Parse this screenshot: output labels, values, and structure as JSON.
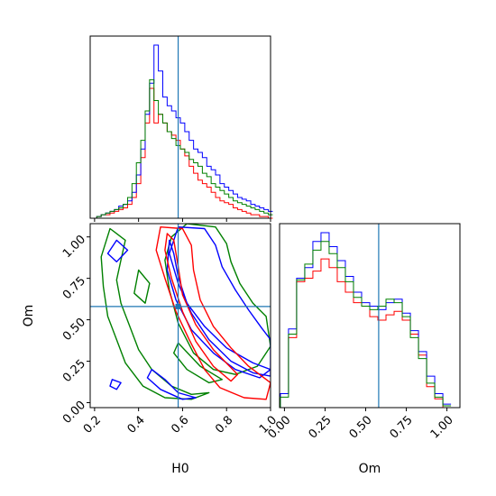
{
  "chart_data": {
    "type": "corner",
    "parameters": [
      "H0",
      "Om"
    ],
    "truth": {
      "H0": 0.58,
      "Om": 0.58
    },
    "truth_color": "#1f77b4",
    "series_colors": [
      "#ff0000",
      "#0000ff",
      "#008000"
    ],
    "axes": {
      "H0": {
        "xlabel": "H0",
        "xlim": [
          0.18,
          1.0
        ],
        "ticks": [
          0.2,
          0.4,
          0.6,
          0.8,
          1.0
        ],
        "tick_labels": [
          "0.2",
          "0.4",
          "0.6",
          "0.8",
          "1.0"
        ]
      },
      "Om": {
        "xlabel": "Om",
        "ylabel": "Om",
        "lim": [
          -0.03,
          1.08
        ],
        "ticks": [
          0.0,
          0.25,
          0.5,
          0.75,
          1.0
        ],
        "tick_labels": [
          "0.00",
          "0.25",
          "0.50",
          "0.75",
          "1.00"
        ]
      }
    },
    "h0_histograms": {
      "x": [
        0.2,
        0.22,
        0.24,
        0.26,
        0.28,
        0.3,
        0.32,
        0.34,
        0.36,
        0.38,
        0.4,
        0.42,
        0.44,
        0.46,
        0.48,
        0.5,
        0.52,
        0.54,
        0.56,
        0.58,
        0.6,
        0.62,
        0.64,
        0.66,
        0.68,
        0.7,
        0.72,
        0.74,
        0.76,
        0.78,
        0.8,
        0.82,
        0.84,
        0.86,
        0.88,
        0.9,
        0.92,
        0.94,
        0.96,
        0.98,
        1.0
      ],
      "red": [
        0,
        0.01,
        0.02,
        0.02,
        0.03,
        0.04,
        0.05,
        0.06,
        0.08,
        0.12,
        0.2,
        0.35,
        0.55,
        0.75,
        0.55,
        0.6,
        0.55,
        0.5,
        0.48,
        0.45,
        0.4,
        0.36,
        0.3,
        0.26,
        0.22,
        0.2,
        0.18,
        0.15,
        0.12,
        0.1,
        0.09,
        0.08,
        0.06,
        0.05,
        0.04,
        0.03,
        0.02,
        0.02,
        0.01,
        0.01,
        0.0
      ],
      "blue": [
        0,
        0.01,
        0.02,
        0.03,
        0.04,
        0.05,
        0.07,
        0.08,
        0.1,
        0.15,
        0.25,
        0.4,
        0.6,
        0.78,
        1.0,
        0.85,
        0.7,
        0.65,
        0.62,
        0.58,
        0.55,
        0.5,
        0.45,
        0.4,
        0.38,
        0.35,
        0.3,
        0.28,
        0.25,
        0.2,
        0.18,
        0.16,
        0.14,
        0.12,
        0.11,
        0.1,
        0.08,
        0.07,
        0.06,
        0.05,
        0.04
      ],
      "green": [
        0,
        0.01,
        0.02,
        0.03,
        0.04,
        0.05,
        0.06,
        0.08,
        0.12,
        0.2,
        0.32,
        0.45,
        0.62,
        0.8,
        0.68,
        0.6,
        0.55,
        0.5,
        0.46,
        0.42,
        0.4,
        0.38,
        0.34,
        0.32,
        0.3,
        0.26,
        0.24,
        0.2,
        0.18,
        0.16,
        0.14,
        0.12,
        0.1,
        0.09,
        0.08,
        0.07,
        0.06,
        0.05,
        0.04,
        0.03,
        0.02
      ]
    },
    "om_histograms": {
      "x": [
        0.0,
        0.05,
        0.1,
        0.15,
        0.2,
        0.25,
        0.3,
        0.35,
        0.4,
        0.45,
        0.5,
        0.55,
        0.6,
        0.65,
        0.7,
        0.75,
        0.8,
        0.85,
        0.9,
        0.95,
        1.0
      ],
      "red": [
        0.08,
        0.4,
        0.72,
        0.74,
        0.78,
        0.85,
        0.8,
        0.72,
        0.66,
        0.6,
        0.58,
        0.52,
        0.5,
        0.53,
        0.55,
        0.5,
        0.42,
        0.3,
        0.12,
        0.05,
        0.0
      ],
      "blue": [
        0.08,
        0.45,
        0.74,
        0.8,
        0.95,
        1.0,
        0.92,
        0.84,
        0.75,
        0.66,
        0.6,
        0.58,
        0.56,
        0.6,
        0.62,
        0.54,
        0.44,
        0.32,
        0.18,
        0.08,
        0.02
      ],
      "green": [
        0.06,
        0.42,
        0.73,
        0.82,
        0.9,
        0.95,
        0.88,
        0.8,
        0.72,
        0.63,
        0.58,
        0.56,
        0.58,
        0.62,
        0.6,
        0.52,
        0.4,
        0.28,
        0.14,
        0.06,
        0.01
      ]
    },
    "contours": {
      "red": [
        [
          [
            0.5,
            1.06
          ],
          [
            0.6,
            1.05
          ],
          [
            0.64,
            0.95
          ],
          [
            0.65,
            0.8
          ],
          [
            0.68,
            0.62
          ],
          [
            0.74,
            0.46
          ],
          [
            0.82,
            0.33
          ],
          [
            0.9,
            0.22
          ],
          [
            1.0,
            0.12
          ],
          [
            0.98,
            0.02
          ],
          [
            0.88,
            0.03
          ],
          [
            0.77,
            0.09
          ],
          [
            0.7,
            0.2
          ],
          [
            0.63,
            0.38
          ],
          [
            0.57,
            0.55
          ],
          [
            0.52,
            0.75
          ],
          [
            0.48,
            0.92
          ],
          [
            0.5,
            1.06
          ]
        ],
        [
          [
            0.53,
            1.02
          ],
          [
            0.56,
            0.98
          ],
          [
            0.58,
            0.82
          ],
          [
            0.6,
            0.65
          ],
          [
            0.66,
            0.47
          ],
          [
            0.74,
            0.32
          ],
          [
            0.85,
            0.17
          ],
          [
            0.82,
            0.13
          ],
          [
            0.74,
            0.22
          ],
          [
            0.66,
            0.37
          ],
          [
            0.6,
            0.55
          ],
          [
            0.55,
            0.75
          ],
          [
            0.52,
            0.92
          ],
          [
            0.53,
            1.02
          ]
        ]
      ],
      "blue": [
        [
          [
            0.58,
            1.06
          ],
          [
            0.7,
            1.05
          ],
          [
            0.75,
            0.95
          ],
          [
            0.78,
            0.82
          ],
          [
            0.84,
            0.68
          ],
          [
            0.9,
            0.56
          ],
          [
            0.96,
            0.45
          ],
          [
            1.0,
            0.38
          ],
          [
            1.0,
            0.16
          ],
          [
            0.92,
            0.18
          ],
          [
            0.82,
            0.25
          ],
          [
            0.72,
            0.38
          ],
          [
            0.64,
            0.54
          ],
          [
            0.58,
            0.72
          ],
          [
            0.54,
            0.9
          ],
          [
            0.58,
            1.06
          ]
        ],
        [
          [
            0.54,
            0.98
          ],
          [
            0.56,
            0.9
          ],
          [
            0.58,
            0.76
          ],
          [
            0.62,
            0.6
          ],
          [
            0.7,
            0.46
          ],
          [
            0.8,
            0.33
          ],
          [
            0.92,
            0.24
          ],
          [
            1.0,
            0.2
          ],
          [
            0.95,
            0.15
          ],
          [
            0.84,
            0.2
          ],
          [
            0.74,
            0.3
          ],
          [
            0.64,
            0.44
          ],
          [
            0.57,
            0.62
          ],
          [
            0.53,
            0.8
          ],
          [
            0.54,
            0.98
          ]
        ],
        [
          [
            0.3,
            0.98
          ],
          [
            0.35,
            0.92
          ],
          [
            0.3,
            0.85
          ],
          [
            0.26,
            0.9
          ],
          [
            0.3,
            0.98
          ]
        ],
        [
          [
            0.46,
            0.2
          ],
          [
            0.52,
            0.14
          ],
          [
            0.58,
            0.06
          ],
          [
            0.66,
            0.03
          ],
          [
            0.6,
            0.02
          ],
          [
            0.5,
            0.08
          ],
          [
            0.44,
            0.15
          ],
          [
            0.46,
            0.2
          ]
        ],
        [
          [
            0.28,
            0.14
          ],
          [
            0.32,
            0.12
          ],
          [
            0.3,
            0.08
          ],
          [
            0.27,
            0.1
          ],
          [
            0.28,
            0.14
          ]
        ]
      ],
      "green": [
        [
          [
            0.62,
            1.08
          ],
          [
            0.75,
            1.06
          ],
          [
            0.8,
            0.96
          ],
          [
            0.82,
            0.85
          ],
          [
            0.86,
            0.72
          ],
          [
            0.92,
            0.6
          ],
          [
            0.98,
            0.52
          ],
          [
            1.0,
            0.34
          ],
          [
            0.94,
            0.22
          ],
          [
            0.84,
            0.17
          ],
          [
            0.74,
            0.2
          ],
          [
            0.65,
            0.3
          ],
          [
            0.58,
            0.48
          ],
          [
            0.54,
            0.68
          ],
          [
            0.52,
            0.86
          ],
          [
            0.55,
            1.0
          ],
          [
            0.62,
            1.08
          ]
        ],
        [
          [
            0.27,
            1.05
          ],
          [
            0.34,
            0.98
          ],
          [
            0.32,
            0.86
          ],
          [
            0.3,
            0.74
          ],
          [
            0.32,
            0.6
          ],
          [
            0.36,
            0.46
          ],
          [
            0.4,
            0.32
          ],
          [
            0.46,
            0.2
          ],
          [
            0.55,
            0.1
          ],
          [
            0.64,
            0.05
          ],
          [
            0.72,
            0.06
          ],
          [
            0.64,
            0.02
          ],
          [
            0.52,
            0.03
          ],
          [
            0.42,
            0.1
          ],
          [
            0.34,
            0.24
          ],
          [
            0.3,
            0.38
          ],
          [
            0.26,
            0.52
          ],
          [
            0.24,
            0.7
          ],
          [
            0.23,
            0.88
          ],
          [
            0.27,
            1.05
          ]
        ],
        [
          [
            0.4,
            0.8
          ],
          [
            0.45,
            0.72
          ],
          [
            0.43,
            0.6
          ],
          [
            0.38,
            0.66
          ],
          [
            0.4,
            0.8
          ]
        ],
        [
          [
            0.58,
            0.36
          ],
          [
            0.68,
            0.22
          ],
          [
            0.78,
            0.14
          ],
          [
            0.72,
            0.12
          ],
          [
            0.62,
            0.2
          ],
          [
            0.56,
            0.3
          ],
          [
            0.58,
            0.36
          ]
        ]
      ]
    }
  }
}
